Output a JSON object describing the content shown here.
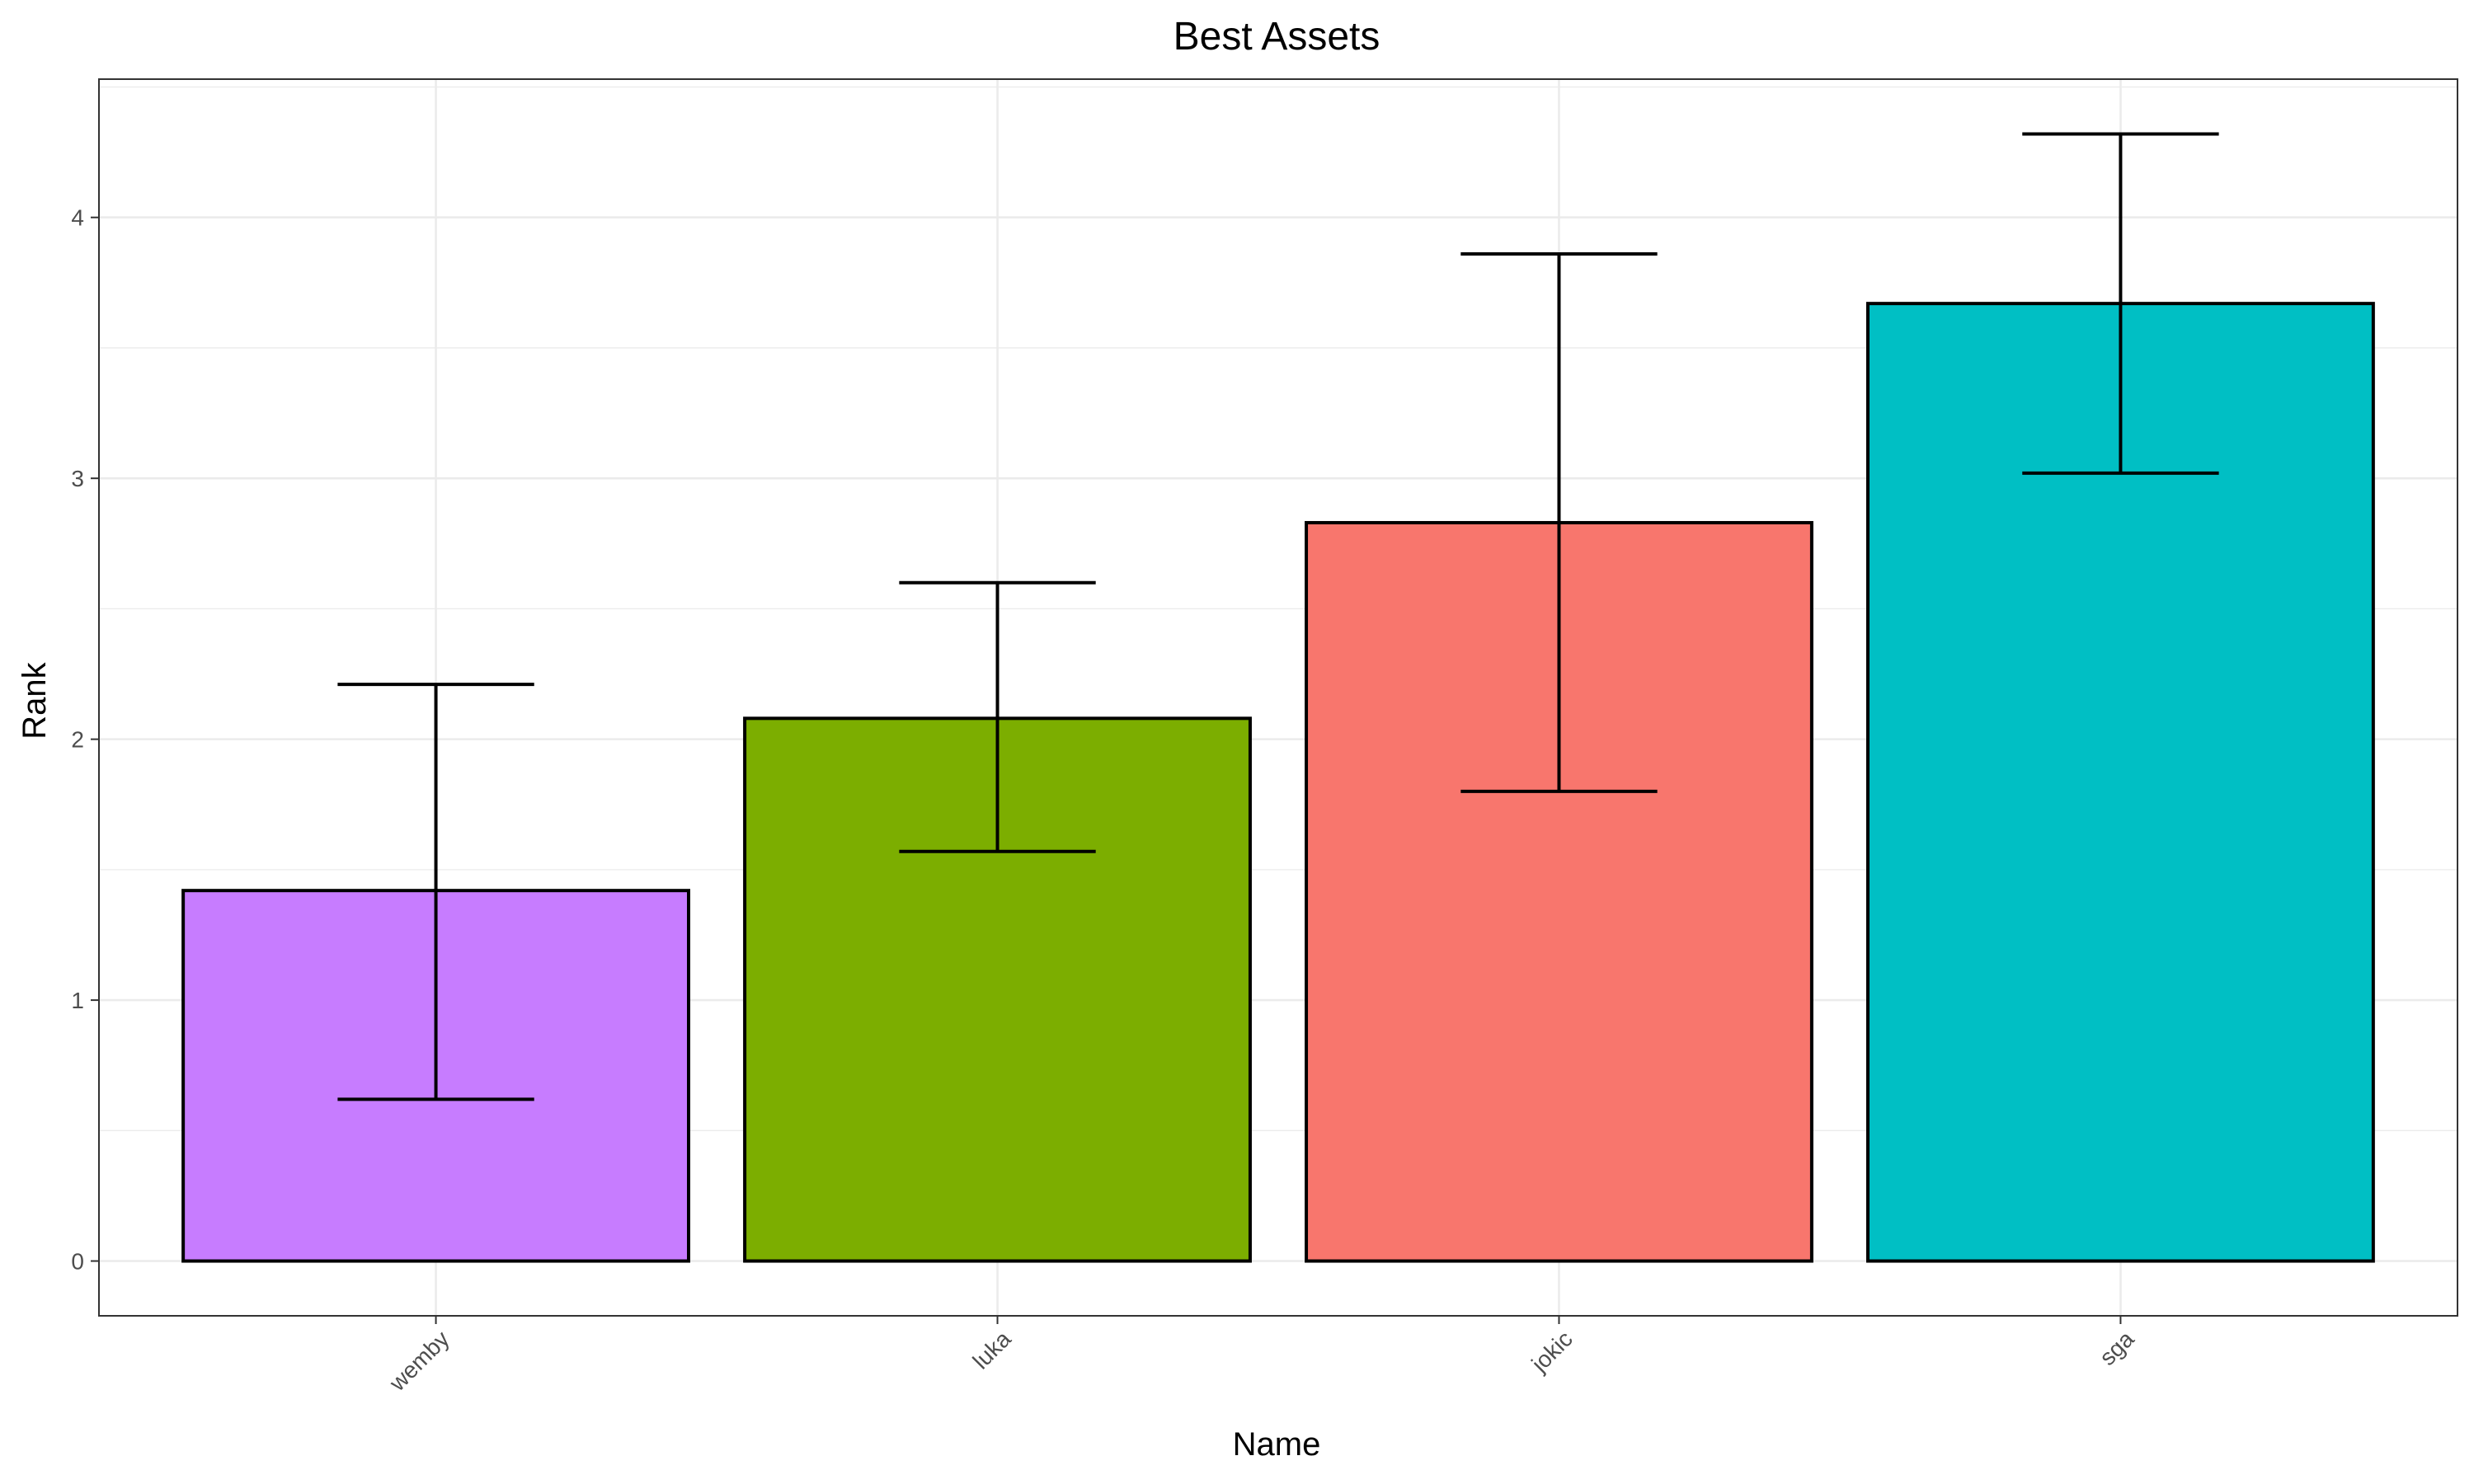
{
  "chart_data": {
    "type": "bar",
    "title": "Best Assets",
    "xlabel": "Name",
    "ylabel": "Rank",
    "categories": [
      "wemby",
      "luka",
      "jokic",
      "sga"
    ],
    "values": [
      1.42,
      2.08,
      2.83,
      3.67
    ],
    "error_low": [
      0.62,
      1.57,
      1.8,
      3.02
    ],
    "error_high": [
      2.21,
      2.6,
      3.86,
      4.32
    ],
    "colors": [
      "#C77CFF",
      "#7CAE00",
      "#F8766D",
      "#00BFC4"
    ],
    "ylim": [
      -0.21,
      4.53
    ],
    "yticks": [
      0,
      1,
      2,
      3,
      4
    ],
    "grid": true,
    "legend": "none"
  }
}
